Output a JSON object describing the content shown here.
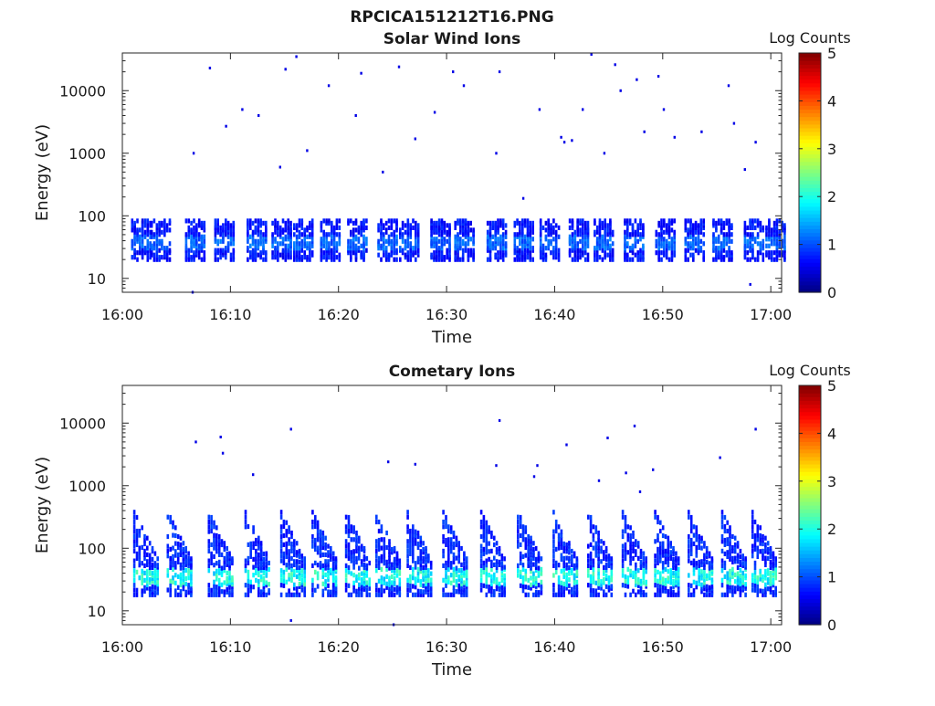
{
  "figure": {
    "title": "RPCICA151212T16.PNG"
  },
  "colorbar": {
    "label": "Log Counts",
    "ticks": [
      "0",
      "1",
      "2",
      "3",
      "4",
      "5"
    ],
    "range": [
      0,
      5
    ],
    "colormap": "jet"
  },
  "chart_data": [
    {
      "type": "heatmap",
      "title": "Solar Wind Ions",
      "xlabel": "Time",
      "ylabel": "Energy (eV)",
      "xticks": [
        "16:00",
        "16:10",
        "16:20",
        "16:30",
        "16:40",
        "16:50",
        "17:00"
      ],
      "yticks": [
        "10",
        "100",
        "1000",
        "10000"
      ],
      "xlim_minutes": [
        0,
        61
      ],
      "ylim": [
        6,
        40000
      ],
      "yscale": "log",
      "grid": false,
      "bursts_minutes": [
        0.8,
        2.6,
        5.8,
        8.5,
        11.5,
        13.8,
        15.8,
        18.3,
        20.8,
        23.6,
        25.6,
        28.5,
        30.7,
        33.7,
        36.2,
        38.6,
        41.3,
        43.6,
        46.4,
        49.3,
        52.0,
        54.6,
        57.5,
        59.5
      ],
      "burst_energy_ev": [
        20,
        90
      ],
      "burst_log_counts": [
        0.5,
        1.3
      ],
      "scattered_points": [
        [
          6.5,
          1000
        ],
        [
          8.0,
          23000
        ],
        [
          9.5,
          2700
        ],
        [
          11.0,
          5000
        ],
        [
          12.5,
          4000
        ],
        [
          14.5,
          600
        ],
        [
          15.0,
          22000
        ],
        [
          16.0,
          35000
        ],
        [
          17.0,
          1100
        ],
        [
          19.0,
          12000
        ],
        [
          21.5,
          4000
        ],
        [
          22.0,
          19000
        ],
        [
          24.0,
          500
        ],
        [
          25.5,
          24000
        ],
        [
          27.0,
          1700
        ],
        [
          28.8,
          4500
        ],
        [
          30.5,
          20000
        ],
        [
          31.5,
          12000
        ],
        [
          34.5,
          1000
        ],
        [
          34.8,
          20000
        ],
        [
          37.0,
          190
        ],
        [
          38.5,
          5000
        ],
        [
          40.5,
          1800
        ],
        [
          40.8,
          1500
        ],
        [
          41.5,
          1600
        ],
        [
          42.5,
          5000
        ],
        [
          43.3,
          38000
        ],
        [
          44.5,
          1000
        ],
        [
          45.5,
          26000
        ],
        [
          46.0,
          10000
        ],
        [
          47.5,
          15000
        ],
        [
          48.2,
          2200
        ],
        [
          49.5,
          17000
        ],
        [
          50.0,
          5000
        ],
        [
          51.0,
          1800
        ],
        [
          53.5,
          2200
        ],
        [
          56.0,
          12000
        ],
        [
          56.5,
          3000
        ],
        [
          57.5,
          550
        ],
        [
          58.5,
          1500
        ],
        [
          6.4,
          6
        ],
        [
          58.0,
          8
        ]
      ]
    },
    {
      "type": "heatmap",
      "title": "Cometary Ions",
      "xlabel": "Time",
      "ylabel": "Energy (eV)",
      "xticks": [
        "16:00",
        "16:10",
        "16:20",
        "16:30",
        "16:40",
        "16:50",
        "17:00"
      ],
      "yticks": [
        "10",
        "100",
        "1000",
        "10000"
      ],
      "xlim_minutes": [
        0,
        61
      ],
      "ylim": [
        6,
        40000
      ],
      "yscale": "log",
      "grid": false,
      "bursts_minutes": [
        1.0,
        4.1,
        7.9,
        11.3,
        14.6,
        17.5,
        20.6,
        23.4,
        26.3,
        29.6,
        33.1,
        36.5,
        39.8,
        43.0,
        46.2,
        49.2,
        52.3,
        55.4,
        58.2
      ],
      "burst_energy_ev": [
        18,
        450
      ],
      "burst_log_counts": [
        0.6,
        2.3
      ],
      "scattered_points": [
        [
          6.7,
          5000
        ],
        [
          9.0,
          6000
        ],
        [
          9.2,
          3300
        ],
        [
          12.0,
          1500
        ],
        [
          15.5,
          8000
        ],
        [
          24.5,
          2400
        ],
        [
          27.0,
          2200
        ],
        [
          34.5,
          2100
        ],
        [
          34.8,
          11000
        ],
        [
          38.0,
          1400
        ],
        [
          38.3,
          2100
        ],
        [
          41.0,
          4500
        ],
        [
          44.0,
          1200
        ],
        [
          44.8,
          5800
        ],
        [
          46.5,
          1600
        ],
        [
          47.3,
          9000
        ],
        [
          47.8,
          800
        ],
        [
          49.0,
          1800
        ],
        [
          55.2,
          2800
        ],
        [
          58.5,
          8000
        ],
        [
          15.5,
          7
        ],
        [
          25.0,
          6
        ]
      ]
    }
  ]
}
